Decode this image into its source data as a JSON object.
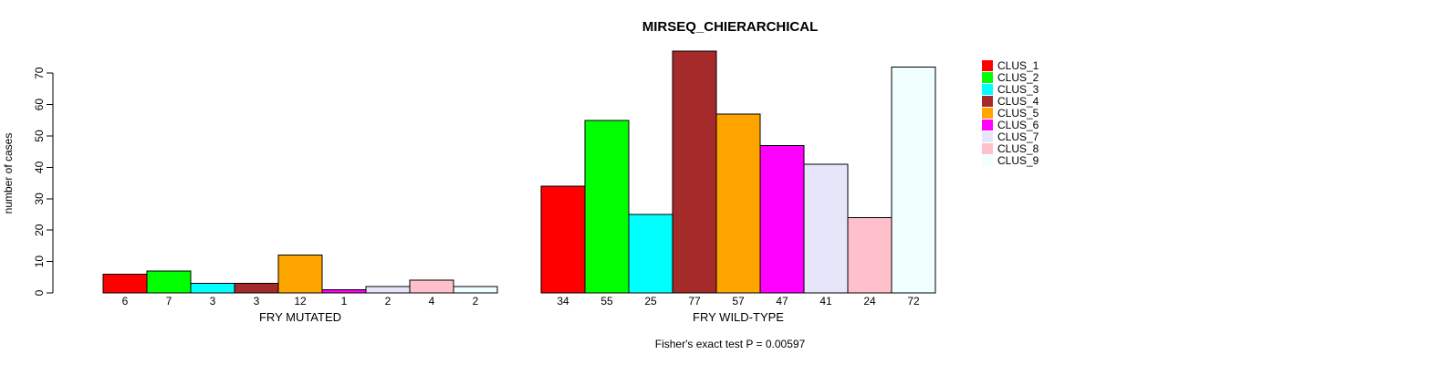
{
  "chart_data": {
    "type": "bar",
    "title": "MIRSEQ_CHIERARCHICAL",
    "ylabel": "number of cases",
    "footnote": "Fisher's exact test P = 0.00597",
    "yticks": [
      0,
      10,
      20,
      30,
      40,
      50,
      60,
      70
    ],
    "ylim": [
      0,
      77
    ],
    "grid": false,
    "legend_position": "right",
    "groups": [
      {
        "label": "FRY MUTATED",
        "values": [
          6,
          7,
          3,
          3,
          12,
          1,
          2,
          4,
          2
        ]
      },
      {
        "label": "FRY WILD-TYPE",
        "values": [
          34,
          55,
          25,
          77,
          57,
          47,
          41,
          24,
          72
        ]
      }
    ],
    "legend": [
      {
        "label": "CLUS_1",
        "color": "#ff0000"
      },
      {
        "label": "CLUS_2",
        "color": "#00ff00"
      },
      {
        "label": "CLUS_3",
        "color": "#00ffff"
      },
      {
        "label": "CLUS_4",
        "color": "#a52a2a"
      },
      {
        "label": "CLUS_5",
        "color": "#ffa500"
      },
      {
        "label": "CLUS_6",
        "color": "#ff00ff"
      },
      {
        "label": "CLUS_7",
        "color": "#e6e6fa"
      },
      {
        "label": "CLUS_8",
        "color": "#ffc0cb"
      },
      {
        "label": "CLUS_9",
        "color": "#f0ffff"
      }
    ]
  }
}
